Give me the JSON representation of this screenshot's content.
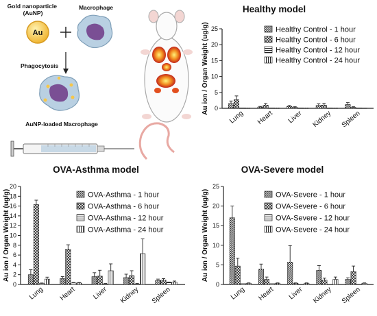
{
  "illustration": {
    "gold_label": "Gold nanoparticle\n(AuNP)",
    "au_symbol": "Au",
    "macrophage_label": "Macrophage",
    "phagocytosis_label": "Phagocytosis",
    "loaded_label": "AuNP-loaded Macrophage",
    "colors": {
      "gold": "#f6c64a",
      "cell": "#b7cfe0",
      "nucleus": "#7a4f94"
    }
  },
  "chart_data": [
    {
      "type": "bar",
      "title": "Healthy model",
      "ylabel": "Au ion / Organ Weight (ug/g)",
      "ylim": [
        0,
        25
      ],
      "yticks": [
        0,
        5,
        10,
        15,
        20,
        25
      ],
      "categories": [
        "Lung",
        "Heart",
        "Liver",
        "Kidney",
        "Spleen"
      ],
      "legend_position": "top-right",
      "series": [
        {
          "name": "Healthy Control - 1 hour",
          "values": [
            1.5,
            0.4,
            0.6,
            0.9,
            1.2
          ],
          "errors": [
            0.8,
            0.2,
            0.3,
            0.5,
            0.6
          ]
        },
        {
          "name": "Healthy Control - 6 hour",
          "values": [
            2.7,
            1.0,
            0.3,
            1.0,
            0.3
          ],
          "errors": [
            1.2,
            0.5,
            0.2,
            0.6,
            0.2
          ]
        },
        {
          "name": "Healthy Control - 12 hour",
          "values": [
            0.1,
            0.1,
            0.1,
            0.1,
            0.1
          ],
          "errors": [
            0.05,
            0.05,
            0.05,
            0.05,
            0.05
          ]
        },
        {
          "name": "Healthy Control - 24 hour",
          "values": [
            0.1,
            0.1,
            0.1,
            0.1,
            0.1
          ],
          "errors": [
            0.05,
            0.05,
            0.05,
            0.05,
            0.05
          ]
        }
      ]
    },
    {
      "type": "bar",
      "title": "OVA-Asthma model",
      "ylabel": "Au ion / Organ Weight (ug/g)",
      "ylim": [
        0,
        20
      ],
      "yticks": [
        0,
        2,
        4,
        6,
        8,
        10,
        12,
        14,
        16,
        18,
        20
      ],
      "categories": [
        "Lung",
        "Heart",
        "Liver",
        "Kidney",
        "Spleen"
      ],
      "legend_position": "top-right",
      "series": [
        {
          "name": "OVA-Asthma - 1 hour",
          "values": [
            2.0,
            1.2,
            1.6,
            1.4,
            0.8
          ],
          "errors": [
            1.0,
            0.4,
            0.8,
            0.7,
            0.3
          ]
        },
        {
          "name": "OVA-Asthma - 6 hour",
          "values": [
            16.3,
            7.2,
            1.7,
            1.8,
            0.9
          ],
          "errors": [
            0.9,
            0.9,
            1.2,
            1.0,
            0.3
          ]
        },
        {
          "name": "OVA-Asthma - 12 hour",
          "values": [
            0.2,
            0.3,
            0.1,
            0.1,
            0.4
          ],
          "errors": [
            0.1,
            0.1,
            0.1,
            0.1,
            0.1
          ]
        },
        {
          "name": "OVA-Asthma - 24 hour",
          "values": [
            1.1,
            0.3,
            2.8,
            6.3,
            0.5
          ],
          "errors": [
            0.4,
            0.1,
            1.4,
            3.0,
            0.2
          ]
        }
      ]
    },
    {
      "type": "bar",
      "title": "OVA-Severe model",
      "ylabel": "Au ion / Organ Weight (ug/g)",
      "ylim": [
        0,
        25
      ],
      "yticks": [
        0,
        5,
        10,
        15,
        20,
        25
      ],
      "categories": [
        "Lung",
        "Heart",
        "Liver",
        "Kidney",
        "Spleen"
      ],
      "legend_position": "top-right",
      "series": [
        {
          "name": "OVA-Severe - 1 hour",
          "values": [
            17.0,
            3.9,
            5.7,
            3.6,
            1.3
          ],
          "errors": [
            3.0,
            1.3,
            4.2,
            1.2,
            0.4
          ]
        },
        {
          "name": "OVA-Severe - 6 hour",
          "values": [
            4.7,
            1.3,
            0.3,
            1.1,
            3.3
          ],
          "errors": [
            2.0,
            0.6,
            0.1,
            0.5,
            1.4
          ]
        },
        {
          "name": "OVA-Severe - 12 hour",
          "values": [
            0.2,
            0.2,
            0.1,
            0.1,
            0.1
          ],
          "errors": [
            0.05,
            0.05,
            0.05,
            0.05,
            0.05
          ]
        },
        {
          "name": "OVA-Severe - 24 hour",
          "values": [
            0.3,
            0.3,
            0.3,
            1.3,
            0.3
          ],
          "errors": [
            0.1,
            0.1,
            0.1,
            0.6,
            0.1
          ]
        }
      ]
    }
  ]
}
